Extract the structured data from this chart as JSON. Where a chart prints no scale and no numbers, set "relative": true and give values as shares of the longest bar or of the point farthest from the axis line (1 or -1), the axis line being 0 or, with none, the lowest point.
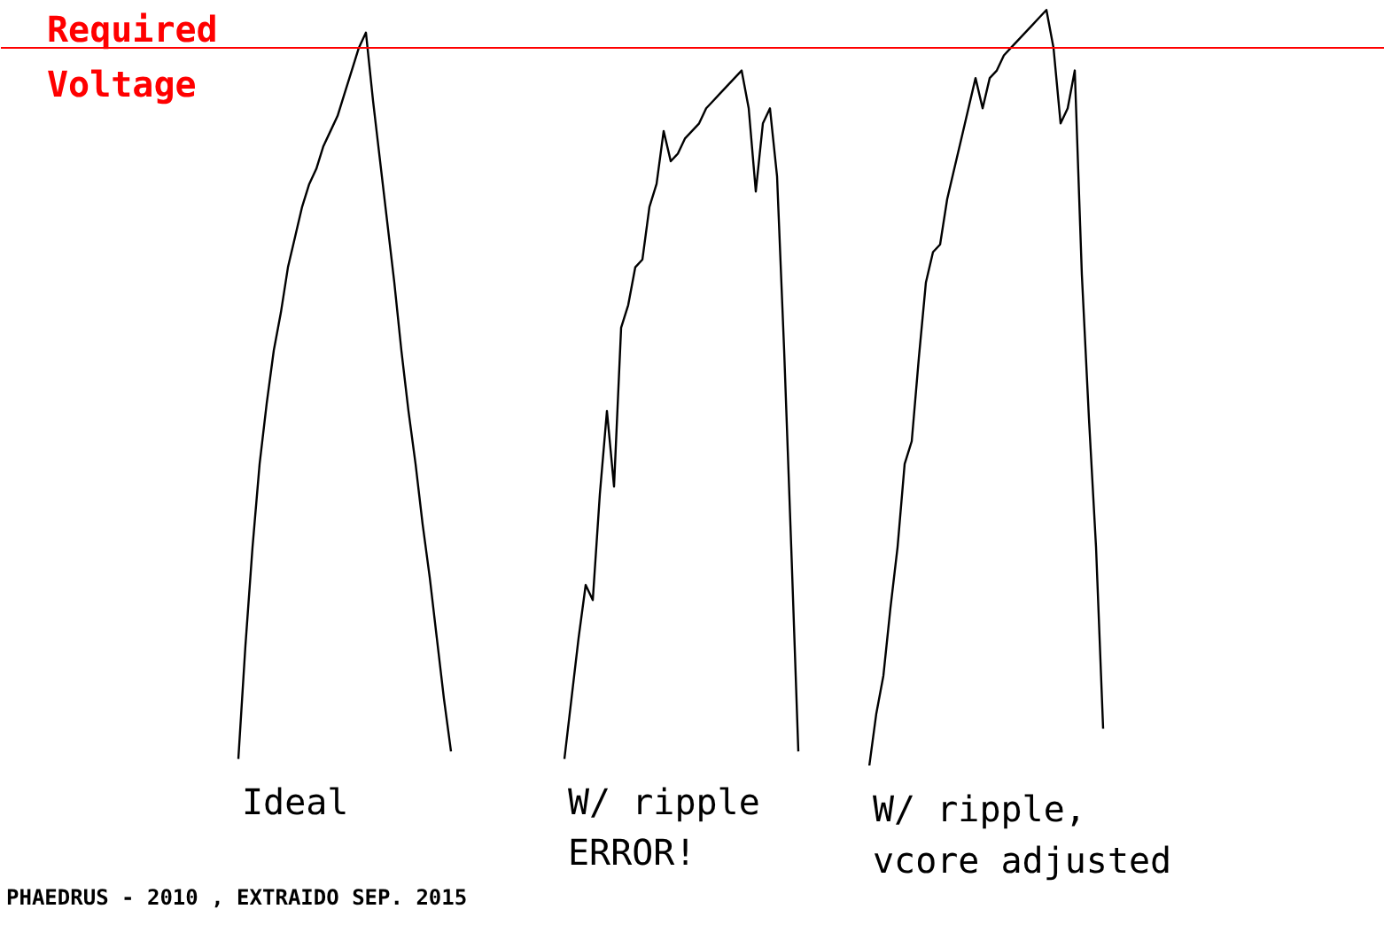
{
  "chart_data": {
    "type": "line",
    "relative": true,
    "grid": false,
    "legend": false,
    "marker": "none",
    "line_style": "solid",
    "categories": [
      null,
      null,
      null,
      null,
      null,
      null,
      null,
      null,
      null,
      null,
      null,
      null,
      null,
      null,
      null,
      null,
      null,
      null,
      null,
      null,
      null,
      null,
      null,
      null,
      null,
      null,
      null,
      null,
      null,
      null,
      null,
      null,
      null,
      null,
      null,
      null,
      null,
      null,
      null,
      null,
      null,
      null,
      null,
      null,
      null,
      null,
      null,
      null,
      null,
      null,
      null,
      null,
      null,
      null,
      null,
      null,
      null,
      null,
      null,
      null,
      null,
      null,
      null,
      null,
      null,
      null,
      null,
      null,
      null,
      null,
      null,
      null,
      null,
      null,
      null,
      null,
      null,
      null,
      null,
      null,
      null,
      null,
      null,
      null,
      null,
      null,
      null,
      null,
      null,
      null,
      null,
      null,
      null,
      null,
      null,
      null,
      null,
      null,
      null,
      null,
      null,
      null,
      null,
      null,
      null,
      null,
      null,
      null,
      null,
      null,
      null,
      null,
      null,
      null,
      null,
      null,
      null,
      null,
      null,
      null,
      null,
      null,
      null
    ],
    "series": [
      {
        "name": "Ideal",
        "color": "#000000",
        "values": [
          0.01,
          0.16,
          0.29,
          0.4,
          0.48,
          0.55,
          0.6,
          0.66,
          0.7,
          0.74,
          0.77,
          0.79,
          0.82,
          0.84,
          0.86,
          0.89,
          0.92,
          0.95,
          0.97,
          0.88,
          0.8,
          0.72,
          0.64,
          0.55,
          0.47,
          0.4,
          0.32,
          0.25,
          0.17,
          0.09,
          0.02,
          null,
          null,
          null,
          null,
          null,
          null,
          null,
          null,
          null,
          null,
          null,
          null,
          null,
          null,
          null,
          null,
          null,
          null,
          null,
          null,
          null,
          null,
          null,
          null,
          null,
          null,
          null,
          null,
          null,
          null,
          null,
          null,
          null,
          null,
          null,
          null,
          null,
          null,
          null,
          null,
          null,
          null,
          null,
          null,
          null,
          null,
          null,
          null,
          null,
          null,
          null,
          null,
          null,
          null,
          null,
          null,
          null,
          null,
          null,
          null,
          null,
          null,
          null,
          null,
          null,
          null,
          null,
          null,
          null,
          null,
          null,
          null,
          null,
          null,
          null,
          null,
          null,
          null,
          null,
          null,
          null,
          null,
          null,
          null,
          null,
          null,
          null,
          null,
          null,
          null,
          null,
          null
        ]
      },
      {
        "name": "W/ ripple\nERROR!",
        "color": "#000000",
        "values": [
          null,
          null,
          null,
          null,
          null,
          null,
          null,
          null,
          null,
          null,
          null,
          null,
          null,
          null,
          null,
          null,
          null,
          null,
          null,
          null,
          null,
          null,
          null,
          null,
          null,
          null,
          null,
          null,
          null,
          null,
          null,
          null,
          null,
          null,
          null,
          null,
          null,
          null,
          null,
          null,
          null,
          null,
          null,
          null,
          null,
          null,
          0.01,
          0.09,
          0.17,
          0.24,
          0.22,
          0.36,
          0.47,
          0.37,
          0.58,
          0.61,
          0.66,
          0.67,
          0.74,
          0.77,
          0.84,
          0.8,
          0.81,
          0.83,
          0.84,
          0.85,
          0.87,
          0.88,
          0.89,
          0.9,
          0.91,
          0.92,
          0.87,
          0.76,
          0.85,
          0.87,
          0.78,
          0.55,
          0.29,
          0.02,
          null,
          null,
          null,
          null,
          null,
          null,
          null,
          null,
          null,
          null,
          null,
          null,
          null,
          null,
          null,
          null,
          null,
          null,
          null,
          null,
          null,
          null,
          null,
          null,
          null,
          null,
          null,
          null,
          null,
          null,
          null,
          null,
          null,
          null,
          null,
          null,
          null,
          null,
          null,
          null,
          null,
          null,
          null
        ]
      },
      {
        "name": "W/ ripple,\nvcore adjusted",
        "color": "#000000",
        "values": [
          null,
          null,
          null,
          null,
          null,
          null,
          null,
          null,
          null,
          null,
          null,
          null,
          null,
          null,
          null,
          null,
          null,
          null,
          null,
          null,
          null,
          null,
          null,
          null,
          null,
          null,
          null,
          null,
          null,
          null,
          null,
          null,
          null,
          null,
          null,
          null,
          null,
          null,
          null,
          null,
          null,
          null,
          null,
          null,
          null,
          null,
          null,
          null,
          null,
          null,
          null,
          null,
          null,
          null,
          null,
          null,
          null,
          null,
          null,
          null,
          null,
          null,
          null,
          null,
          null,
          null,
          null,
          null,
          null,
          null,
          null,
          null,
          null,
          null,
          null,
          null,
          null,
          null,
          null,
          null,
          null,
          null,
          null,
          null,
          null,
          null,
          null,
          null,
          null,
          0,
          0.07,
          0.12,
          0.21,
          0.29,
          0.4,
          0.43,
          0.54,
          0.64,
          0.68,
          0.69,
          0.75,
          0.79,
          0.83,
          0.87,
          0.91,
          0.87,
          0.91,
          0.92,
          0.94,
          0.95,
          0.96,
          0.97,
          0.98,
          0.99,
          1.0,
          0.95,
          0.85,
          0.87,
          0.92,
          0.65,
          0.46,
          0.29,
          0.05
        ]
      }
    ],
    "ref_lines": [
      {
        "axis": "y",
        "value": 0.95,
        "label": "Required\nVoltage",
        "color": "#ff0000"
      }
    ],
    "annotations": [
      "PHAEDRUS - 2010 , EXTRAIDO SEP. 2015"
    ]
  }
}
